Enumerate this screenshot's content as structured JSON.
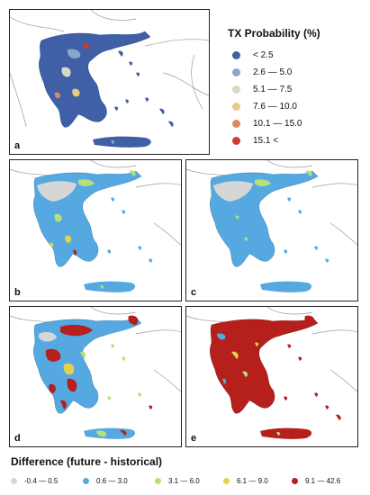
{
  "panels": [
    {
      "label": "a"
    },
    {
      "label": "b"
    },
    {
      "label": "c"
    },
    {
      "label": "d"
    },
    {
      "label": "e"
    }
  ],
  "probability_legend": {
    "title": "TX Probability (%)",
    "items": [
      {
        "label": "< 2.5",
        "color": "#3f5fa6"
      },
      {
        "label": "2.6 — 5.0",
        "color": "#8aa7c8"
      },
      {
        "label": "5.1 — 7.5",
        "color": "#d9d9c2"
      },
      {
        "label": "7.6 — 10.0",
        "color": "#eac983"
      },
      {
        "label": "10.1 — 15.0",
        "color": "#d98a5f"
      },
      {
        "label": "15.1 <",
        "color": "#d13b2f"
      }
    ]
  },
  "difference_legend": {
    "title": "Difference (future - historical)",
    "items": [
      {
        "label": "-0.4 — 0.5",
        "color": "#d6d6d6"
      },
      {
        "label": "0.6 — 3.0",
        "color": "#56a9e0"
      },
      {
        "label": "3.1 — 6.0",
        "color": "#b5e07a"
      },
      {
        "label": "6.1 — 9.0",
        "color": "#e3d34a"
      },
      {
        "label": "9.1 — 42.6",
        "color": "#b5201d"
      }
    ]
  },
  "palette": {
    "land_outline": "#9a9a9a",
    "sea": "#ffffff"
  }
}
